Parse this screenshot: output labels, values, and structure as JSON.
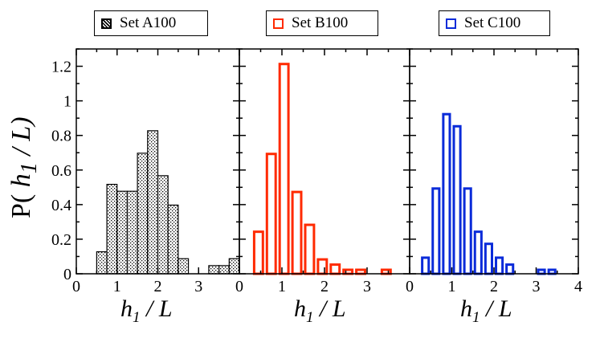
{
  "legend": [
    {
      "label": "Set A100",
      "style": "hatched",
      "color": "#000000"
    },
    {
      "label": "Set B100",
      "style": "outline",
      "color": "#ff2a00"
    },
    {
      "label": "Set C100",
      "style": "outline",
      "color": "#0a2bd9"
    }
  ],
  "y_axis_label": {
    "prefix": "P(",
    "var": "h",
    "sub": "1",
    "suffix": " / L)"
  },
  "x_axis_label": {
    "var": "h",
    "sub": "1",
    "suffix": " / L"
  },
  "chart_data": [
    {
      "type": "bar",
      "panel": "A",
      "series": [
        {
          "name": "Set A100",
          "color": "#000000",
          "fill": "hatched",
          "values": [
            0.13,
            0.52,
            0.48,
            0.48,
            0.7,
            0.83,
            0.57,
            0.4,
            0.09,
            0,
            0,
            0.05,
            0.05,
            0.09
          ]
        }
      ],
      "bin_left": [
        0.5,
        0.75,
        1.0,
        1.25,
        1.5,
        1.75,
        2.0,
        2.25,
        2.5,
        2.75,
        3.0,
        3.25,
        3.5,
        3.75
      ],
      "bin_width": 0.25,
      "xlim": [
        0,
        4
      ],
      "xticks": [
        0,
        1,
        2,
        3
      ],
      "ylim": [
        0,
        1.3
      ],
      "yticks": [
        0,
        0.2,
        0.4,
        0.6,
        0.8,
        1,
        1.2
      ]
    },
    {
      "type": "bar",
      "panel": "B",
      "series": [
        {
          "name": "Set B100",
          "color": "#ff2a00",
          "fill": "outline",
          "values": [
            0.25,
            0.7,
            1.22,
            0.48,
            0.29,
            0.09,
            0.06,
            0.03,
            0.03,
            0,
            0.03
          ]
        }
      ],
      "bin_left": [
        0.3,
        0.6,
        0.9,
        1.2,
        1.5,
        1.8,
        2.1,
        2.4,
        2.7,
        3.0,
        3.3
      ],
      "bin_width": 0.3,
      "xlim": [
        0,
        4
      ],
      "xticks": [
        0,
        1,
        2,
        3
      ],
      "ylim": [
        0,
        1.3
      ]
    },
    {
      "type": "bar",
      "panel": "C",
      "series": [
        {
          "name": "Set C100",
          "color": "#0a2bd9",
          "fill": "outline",
          "values": [
            0.1,
            0.5,
            0.93,
            0.86,
            0.5,
            0.25,
            0.18,
            0.1,
            0.06,
            0,
            0.03,
            0.03
          ]
        }
      ],
      "bin_left": [
        0.25,
        0.5,
        0.75,
        1.0,
        1.25,
        1.5,
        1.75,
        2.0,
        2.25,
        2.5,
        3.0,
        3.25
      ],
      "bin_width": 0.25,
      "xlim": [
        0,
        4
      ],
      "xticks": [
        0,
        1,
        2,
        3,
        4
      ],
      "ylim": [
        0,
        1.3
      ]
    }
  ]
}
